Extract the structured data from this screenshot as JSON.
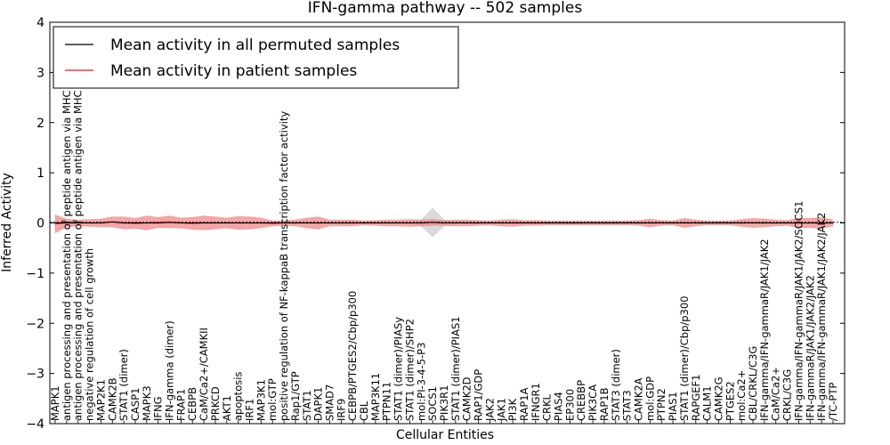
{
  "chart_data": {
    "type": "line",
    "title": "IFN-gamma pathway -- 502 samples",
    "xlabel": "Cellular Entities",
    "ylabel": "Inferred Activity",
    "ylim": [
      -4,
      4
    ],
    "yticks": [
      -4,
      -3,
      -2,
      -1,
      0,
      1,
      2,
      3,
      4
    ],
    "grid": false,
    "legend_position": "top-left",
    "colors": {
      "permuted": "#000000",
      "patient": "#e31a1c",
      "patient_band": "#f08080",
      "permuted_band": "#b0b0b0"
    },
    "categories": [
      "MAPK1",
      "antigen processing and presentation of peptide antigen via MHC class I",
      "antigen processing and presentation of peptide antigen via MHC class II",
      "negative regulation of cell growth",
      "MAP2K1",
      "CAMK2B",
      "STAT1 (dimer)",
      "CASP1",
      "MAPK3",
      "IFNG",
      "IFN-gamma (dimer)",
      "FRAP1",
      "CEBPB",
      "CaM/Ca2+/CAMKII",
      "PRKCD",
      "AKT1",
      "apoptosis",
      "IRF1",
      "MAP3K1",
      "mol:GTP",
      "positive regulation of NF-kappaB transcription factor activity",
      "Rap1/GTP",
      "STAT1",
      "DAPK1",
      "SMAD7",
      "IRF9",
      "CEBPB/PTGES2/Cbp/p300",
      "CBL",
      "MAP3K11",
      "PTPN11",
      "STAT1 (dimer)/PIASy",
      "STAT1 (dimer)/SHP2",
      "mol:PI-3-4-5-P3",
      "SOCS1",
      "PIK3R1",
      "STAT1 (dimer)/PIAS1",
      "CAMK2D",
      "RAP1/GDP",
      "JAK2",
      "JAK1",
      "PI3K",
      "RAP1A",
      "IFNGR1",
      "CRKL",
      "PIAS4",
      "EP300",
      "CREBBP",
      "PIK3CA",
      "RAP1B",
      "STAT3 (dimer)",
      "STAT3",
      "CAMK2A",
      "mol:GDP",
      "PTPN2",
      "PIAS1",
      "STAT1 (dimer)/Cbp/p300",
      "RAPGEF1",
      "CALM1",
      "CAMK2G",
      "PTGES2",
      "mol:Ca2+",
      "CBL/CRKL/C3G",
      "IFN-gamma/IFN-gammaR/JAK1/JAK2",
      "CaM/Ca2+",
      "CRKL/C3G",
      "IFN-gamma/IFN-gammaR/JAK1/JAK2/SOCS1",
      "IFN-gammaR/JAK1/JAK2/JAK2",
      "IFN-gamma/IFN-gammaR/JAK1/JAK2/JAK2",
      "/TC-PTP"
    ],
    "series": [
      {
        "name": "Mean activity in all permuted samples",
        "values": [
          0,
          0,
          0,
          0,
          0,
          0.02,
          0,
          0,
          0,
          0,
          0.01,
          0,
          0,
          0,
          0,
          0,
          0,
          0,
          0,
          0,
          0,
          0,
          0,
          0,
          0,
          0,
          0,
          0,
          0,
          0,
          0,
          0,
          0,
          0.01,
          0,
          0,
          0,
          0,
          0,
          0,
          0,
          0,
          0,
          0,
          0,
          0,
          0,
          0,
          0,
          0,
          0,
          0,
          0,
          0,
          0,
          0,
          0,
          0,
          0,
          0,
          0,
          0,
          0,
          0,
          0,
          0,
          0,
          0,
          0
        ],
        "spread": [
          0.02,
          0.02,
          0.02,
          0.02,
          0.02,
          0.02,
          0.02,
          0.02,
          0.02,
          0.02,
          0.02,
          0.02,
          0.02,
          0.02,
          0.02,
          0.02,
          0.02,
          0.02,
          0.02,
          0.02,
          0.02,
          0.02,
          0.02,
          0.02,
          0.02,
          0.02,
          0.02,
          0.02,
          0.02,
          0.02,
          0.02,
          0.02,
          0.06,
          0.28,
          0.06,
          0.02,
          0.02,
          0.02,
          0.02,
          0.02,
          0.02,
          0.02,
          0.02,
          0.02,
          0.02,
          0.02,
          0.02,
          0.02,
          0.02,
          0.02,
          0.02,
          0.02,
          0.02,
          0.02,
          0.02,
          0.02,
          0.02,
          0.02,
          0.02,
          0.02,
          0.02,
          0.02,
          0.02,
          0.02,
          0.02,
          0.02,
          0.02,
          0.02,
          0.02
        ]
      },
      {
        "name": "Mean activity in patient samples",
        "values": [
          -0.02,
          0,
          0,
          0,
          0,
          0.02,
          0,
          -0.01,
          0,
          0.01,
          0.02,
          0,
          -0.01,
          0,
          0,
          0,
          0,
          0,
          0,
          -0.01,
          0,
          0,
          0,
          0,
          0,
          0,
          0,
          0,
          0,
          0,
          0,
          0,
          0,
          0.01,
          0,
          0,
          0,
          0,
          0,
          0,
          0,
          0,
          0,
          0,
          0,
          0,
          0,
          0,
          0,
          0,
          0,
          0,
          0,
          0,
          0,
          0,
          0,
          0,
          0,
          0,
          0,
          0,
          0,
          0,
          0,
          0,
          0,
          0,
          0
        ],
        "spread": [
          0.18,
          0.08,
          0.06,
          0.07,
          0.08,
          0.1,
          0.12,
          0.1,
          0.14,
          0.1,
          0.12,
          0.1,
          0.12,
          0.14,
          0.12,
          0.1,
          0.13,
          0.12,
          0.1,
          0.05,
          0.05,
          0.06,
          0.1,
          0.12,
          0.06,
          0.06,
          0.06,
          0.04,
          0.05,
          0.06,
          0.06,
          0.07,
          0.06,
          0.06,
          0.05,
          0.06,
          0.06,
          0.05,
          0.04,
          0.06,
          0.07,
          0.05,
          0.05,
          0.04,
          0.04,
          0.04,
          0.04,
          0.04,
          0.04,
          0.04,
          0.04,
          0.05,
          0.08,
          0.05,
          0.04,
          0.09,
          0.06,
          0.04,
          0.04,
          0.04,
          0.07,
          0.09,
          0.08,
          0.06,
          0.05,
          0.1,
          0.09,
          0.11,
          0.06
        ]
      }
    ]
  }
}
